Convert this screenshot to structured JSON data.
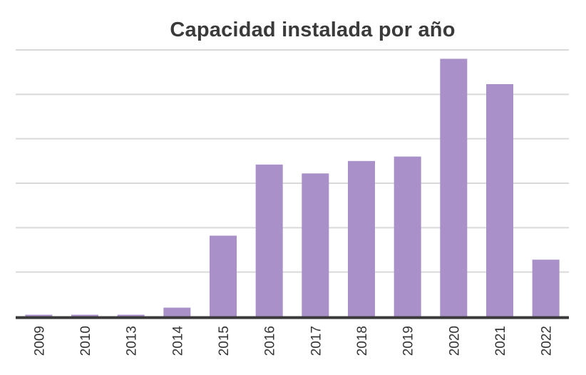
{
  "chart_data": {
    "type": "bar",
    "title": "Capacidad instalada por año",
    "xlabel": "",
    "ylabel": "",
    "categories": [
      "2009",
      "2010",
      "2013",
      "2014",
      "2015",
      "2016",
      "2017",
      "2018",
      "2019",
      "2020",
      "2021",
      "2022"
    ],
    "values": [
      0.04,
      0.04,
      0.04,
      0.2,
      1.82,
      3.42,
      3.22,
      3.5,
      3.6,
      5.8,
      5.23,
      1.28
    ],
    "ylim": [
      0,
      6
    ],
    "grid": true,
    "y_tick_labels_visible": false,
    "legend": "none",
    "colors": {
      "bar": "#a990c8",
      "grid": "#d9d9d9",
      "axis": "#3a3a3a",
      "title": "#3a3a3a",
      "tick_label": "#333333"
    }
  }
}
